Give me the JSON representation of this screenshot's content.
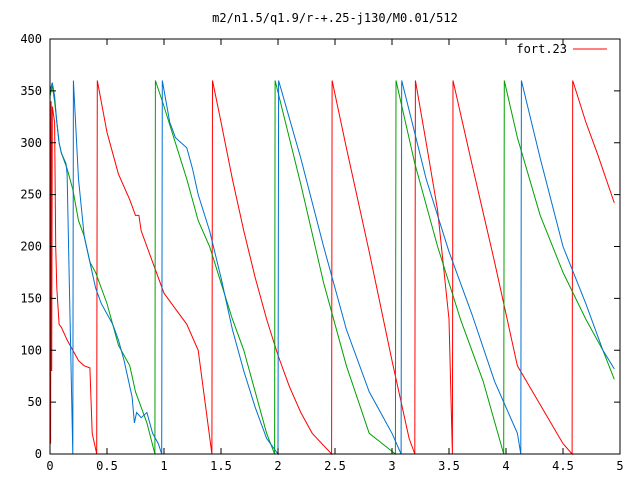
{
  "chart_data": {
    "type": "line",
    "title": "m2/n1.5/q1.9/r-+.25-j130/M0.01/512",
    "xlabel": "",
    "ylabel": "",
    "xlim": [
      0,
      5
    ],
    "ylim": [
      0,
      400
    ],
    "grid": false,
    "legend_placement": "top-right",
    "x_ticks": [
      "0",
      "0.5",
      "1",
      "1.5",
      "2",
      "2.5",
      "3",
      "3.5",
      "4",
      "4.5",
      "5"
    ],
    "y_ticks": [
      "0",
      "50",
      "100",
      "150",
      "200",
      "250",
      "300",
      "350",
      "400"
    ],
    "series": [
      {
        "name": "fort.23",
        "color": "#ff0000",
        "points": [
          [
            0.0,
            350
          ],
          [
            0.005,
            10
          ],
          [
            0.01,
            340
          ],
          [
            0.015,
            80
          ],
          [
            0.02,
            335
          ],
          [
            0.04,
            320
          ],
          [
            0.05,
            200
          ],
          [
            0.06,
            160
          ],
          [
            0.08,
            125
          ],
          [
            0.1,
            122
          ],
          [
            0.15,
            110
          ],
          [
            0.2,
            100
          ],
          [
            0.25,
            90
          ],
          [
            0.3,
            85
          ],
          [
            0.35,
            83
          ],
          [
            0.37,
            20
          ],
          [
            0.4,
            5
          ],
          [
            0.41,
            0
          ],
          [
            0.415,
            360
          ],
          [
            0.5,
            310
          ],
          [
            0.6,
            270
          ],
          [
            0.7,
            245
          ],
          [
            0.75,
            230
          ],
          [
            0.78,
            230
          ],
          [
            0.8,
            215
          ],
          [
            0.9,
            185
          ],
          [
            1.0,
            155
          ],
          [
            1.1,
            140
          ],
          [
            1.2,
            125
          ],
          [
            1.3,
            100
          ],
          [
            1.42,
            0
          ],
          [
            1.425,
            360
          ],
          [
            1.5,
            320
          ],
          [
            1.6,
            265
          ],
          [
            1.7,
            215
          ],
          [
            1.8,
            170
          ],
          [
            1.9,
            130
          ],
          [
            2.0,
            95
          ],
          [
            2.1,
            65
          ],
          [
            2.2,
            40
          ],
          [
            2.3,
            20
          ],
          [
            2.47,
            0
          ],
          [
            2.475,
            360
          ],
          [
            2.6,
            295
          ],
          [
            2.8,
            195
          ],
          [
            3.0,
            90
          ],
          [
            3.15,
            15
          ],
          [
            3.2,
            0
          ],
          [
            3.205,
            360
          ],
          [
            3.3,
            300
          ],
          [
            3.4,
            235
          ],
          [
            3.5,
            130
          ],
          [
            3.53,
            0
          ],
          [
            3.535,
            360
          ],
          [
            3.7,
            280
          ],
          [
            3.9,
            185
          ],
          [
            4.1,
            85
          ],
          [
            4.5,
            10
          ],
          [
            4.58,
            0
          ],
          [
            4.585,
            360
          ],
          [
            4.7,
            320
          ],
          [
            4.8,
            290
          ],
          [
            4.95,
            242
          ]
        ]
      },
      {
        "name": "",
        "color": "#00a000",
        "points": [
          [
            0.0,
            345
          ],
          [
            0.02,
            355
          ],
          [
            0.04,
            340
          ],
          [
            0.06,
            320
          ],
          [
            0.08,
            300
          ],
          [
            0.1,
            290
          ],
          [
            0.15,
            275
          ],
          [
            0.2,
            255
          ],
          [
            0.25,
            225
          ],
          [
            0.3,
            210
          ],
          [
            0.35,
            185
          ],
          [
            0.4,
            175
          ],
          [
            0.45,
            160
          ],
          [
            0.5,
            145
          ],
          [
            0.6,
            105
          ],
          [
            0.7,
            85
          ],
          [
            0.75,
            60
          ],
          [
            0.8,
            45
          ],
          [
            0.85,
            30
          ],
          [
            0.92,
            0
          ],
          [
            0.925,
            360
          ],
          [
            1.0,
            335
          ],
          [
            1.1,
            300
          ],
          [
            1.2,
            265
          ],
          [
            1.3,
            225
          ],
          [
            1.4,
            200
          ],
          [
            1.5,
            165
          ],
          [
            1.6,
            130
          ],
          [
            1.7,
            100
          ],
          [
            1.8,
            60
          ],
          [
            1.9,
            20
          ],
          [
            1.97,
            0
          ],
          [
            1.975,
            360
          ],
          [
            2.2,
            260
          ],
          [
            2.4,
            165
          ],
          [
            2.6,
            85
          ],
          [
            2.8,
            20
          ],
          [
            3.03,
            0
          ],
          [
            3.035,
            360
          ],
          [
            3.2,
            280
          ],
          [
            3.4,
            200
          ],
          [
            3.6,
            130
          ],
          [
            3.8,
            70
          ],
          [
            3.98,
            0
          ],
          [
            3.985,
            360
          ],
          [
            4.1,
            305
          ],
          [
            4.3,
            230
          ],
          [
            4.5,
            175
          ],
          [
            4.7,
            130
          ],
          [
            4.85,
            100
          ],
          [
            4.95,
            72
          ]
        ]
      },
      {
        "name": "",
        "color": "#0070d0",
        "points": [
          [
            0.0,
            350
          ],
          [
            0.02,
            358
          ],
          [
            0.04,
            345
          ],
          [
            0.06,
            320
          ],
          [
            0.08,
            300
          ],
          [
            0.1,
            290
          ],
          [
            0.12,
            285
          ],
          [
            0.14,
            280
          ],
          [
            0.15,
            270
          ],
          [
            0.2,
            0
          ],
          [
            0.205,
            360
          ],
          [
            0.25,
            265
          ],
          [
            0.3,
            210
          ],
          [
            0.35,
            185
          ],
          [
            0.4,
            160
          ],
          [
            0.45,
            145
          ],
          [
            0.5,
            135
          ],
          [
            0.55,
            125
          ],
          [
            0.6,
            110
          ],
          [
            0.65,
            90
          ],
          [
            0.7,
            65
          ],
          [
            0.72,
            55
          ],
          [
            0.74,
            30
          ],
          [
            0.76,
            40
          ],
          [
            0.8,
            35
          ],
          [
            0.85,
            40
          ],
          [
            0.9,
            20
          ],
          [
            0.95,
            10
          ],
          [
            0.98,
            0
          ],
          [
            0.985,
            360
          ],
          [
            1.05,
            320
          ],
          [
            1.1,
            305
          ],
          [
            1.15,
            300
          ],
          [
            1.2,
            295
          ],
          [
            1.25,
            275
          ],
          [
            1.3,
            250
          ],
          [
            1.4,
            215
          ],
          [
            1.5,
            170
          ],
          [
            1.6,
            120
          ],
          [
            1.7,
            80
          ],
          [
            1.8,
            45
          ],
          [
            1.9,
            15
          ],
          [
            2.0,
            0
          ],
          [
            2.005,
            360
          ],
          [
            2.2,
            285
          ],
          [
            2.4,
            200
          ],
          [
            2.6,
            120
          ],
          [
            2.8,
            60
          ],
          [
            3.0,
            20
          ],
          [
            3.08,
            0
          ],
          [
            3.085,
            360
          ],
          [
            3.3,
            265
          ],
          [
            3.5,
            195
          ],
          [
            3.7,
            135
          ],
          [
            3.9,
            70
          ],
          [
            4.1,
            20
          ],
          [
            4.13,
            0
          ],
          [
            4.135,
            360
          ],
          [
            4.3,
            285
          ],
          [
            4.5,
            200
          ],
          [
            4.7,
            145
          ],
          [
            4.85,
            100
          ],
          [
            4.95,
            82
          ]
        ]
      }
    ]
  }
}
